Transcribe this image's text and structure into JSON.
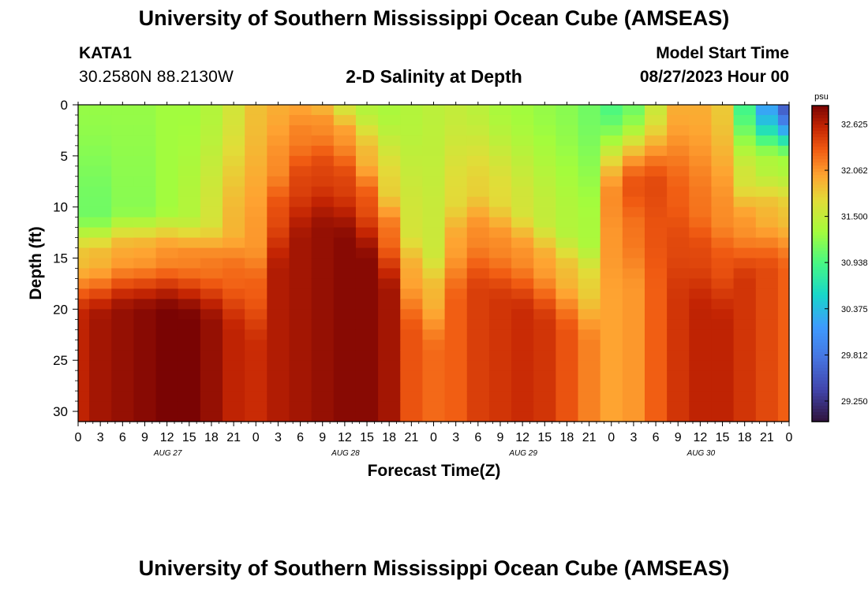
{
  "header": {
    "title": "University of Southern Mississippi Ocean Cube (AMSEAS)",
    "station": "KATA1",
    "coords": "30.2580N  88.2130W",
    "subtitle": "2-D Salinity at Depth",
    "model_label": "Model Start Time",
    "model_date": "08/27/2023 Hour 00"
  },
  "footer": {
    "title": "University of Southern Mississippi Ocean Cube (AMSEAS)"
  },
  "chart_data": {
    "type": "heatmap",
    "xlabel": "Forecast Time(Z)",
    "ylabel": "Depth (ft)",
    "x_ticks": [
      "0",
      "3",
      "6",
      "9",
      "12",
      "15",
      "18",
      "21",
      "0",
      "3",
      "6",
      "9",
      "12",
      "15",
      "18",
      "21",
      "0",
      "3",
      "6",
      "9",
      "12",
      "15",
      "18",
      "21",
      "0",
      "3",
      "6",
      "9",
      "12",
      "15",
      "18",
      "21",
      "0"
    ],
    "x_range_hours": [
      0,
      96
    ],
    "day_labels": [
      {
        "label": "AUG 27",
        "hour": 12
      },
      {
        "label": "AUG 28",
        "hour": 36
      },
      {
        "label": "AUG 29",
        "hour": 60
      },
      {
        "label": "AUG 30",
        "hour": 84
      }
    ],
    "y_ticks": [
      0,
      5,
      10,
      15,
      20,
      25,
      30
    ],
    "ylim": [
      0,
      31
    ],
    "colorbar": {
      "unit": "psu",
      "min": 29.0,
      "max": 32.85,
      "ticks": [
        "32.625",
        "32.062",
        "31.500",
        "30.938",
        "30.375",
        "29.812",
        "29.250"
      ]
    },
    "columns_hours": [
      0,
      3,
      6,
      9,
      12,
      15,
      18,
      21,
      24,
      27,
      30,
      33,
      36,
      39,
      42,
      45,
      48,
      51,
      54,
      57,
      60,
      63,
      66,
      69,
      72,
      75,
      78,
      81,
      84,
      87,
      90,
      93,
      96
    ],
    "halocline_depth_ft": [
      10.5,
      10.5,
      10.0,
      10.0,
      10.0,
      10.5,
      11.0,
      12.0,
      13.5,
      6.0,
      3.0,
      2.0,
      3.0,
      5.0,
      8.0,
      12.0,
      14.0,
      9.0,
      8.0,
      9.0,
      10.0,
      11.0,
      12.0,
      13.0,
      9.0,
      8.0,
      8.0,
      9.0,
      10.0,
      11.0,
      7.0,
      6.0,
      6.0
    ],
    "surface_salinity_psu": [
      31.25,
      31.25,
      31.25,
      31.25,
      31.3,
      31.3,
      31.4,
      31.6,
      31.85,
      31.95,
      32.0,
      31.9,
      31.6,
      31.4,
      31.35,
      31.4,
      31.45,
      31.5,
      31.45,
      31.35,
      31.3,
      31.25,
      31.2,
      31.1,
      30.95,
      31.1,
      31.55,
      31.95,
      31.95,
      31.8,
      30.9,
      30.2,
      29.6
    ],
    "mid_salinity_psu": [
      31.1,
      31.1,
      31.2,
      31.2,
      31.3,
      31.4,
      31.6,
      31.9,
      32.05,
      32.1,
      32.15,
      32.1,
      32.05,
      31.9,
      31.75,
      31.6,
      31.55,
      31.7,
      31.75,
      31.7,
      31.6,
      31.5,
      31.4,
      31.35,
      32.1,
      32.35,
      32.4,
      32.3,
      32.2,
      32.1,
      31.6,
      31.4,
      31.35
    ],
    "bottom_salinity_psu": [
      32.6,
      32.7,
      32.75,
      32.8,
      32.85,
      32.85,
      32.75,
      32.6,
      32.55,
      32.65,
      32.7,
      32.75,
      32.8,
      32.8,
      32.7,
      32.35,
      32.25,
      32.3,
      32.45,
      32.5,
      32.55,
      32.5,
      32.35,
      32.15,
      32.0,
      32.05,
      32.3,
      32.5,
      32.6,
      32.6,
      32.5,
      32.4,
      32.3
    ]
  }
}
